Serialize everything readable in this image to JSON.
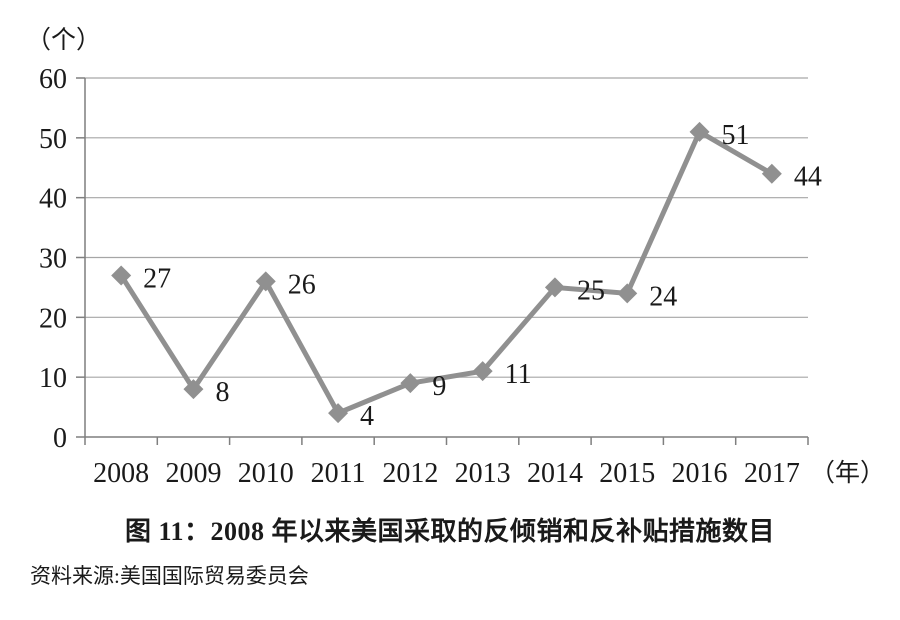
{
  "chart_data": {
    "type": "line",
    "title": "图 11：2008 年以来美国采取的反倾销和反补贴措施数目",
    "source": "资料来源:美国国际贸易委员会",
    "y_unit_label": "（个）",
    "x_unit_label": "（年）",
    "categories": [
      "2008",
      "2009",
      "2010",
      "2011",
      "2012",
      "2013",
      "2014",
      "2015",
      "2016",
      "2017"
    ],
    "values": [
      27,
      8,
      26,
      4,
      9,
      11,
      25,
      24,
      51,
      44
    ],
    "ylim": [
      0,
      60
    ],
    "yticks": [
      0,
      10,
      20,
      30,
      40,
      50,
      60
    ],
    "grid": "horizontal",
    "legend": "none",
    "marker": "diamond",
    "series_color": "#909090",
    "gridline_color": "#a6a6a6",
    "axis_color": "#7f7f7f",
    "text_color": "#1a1a1a"
  }
}
